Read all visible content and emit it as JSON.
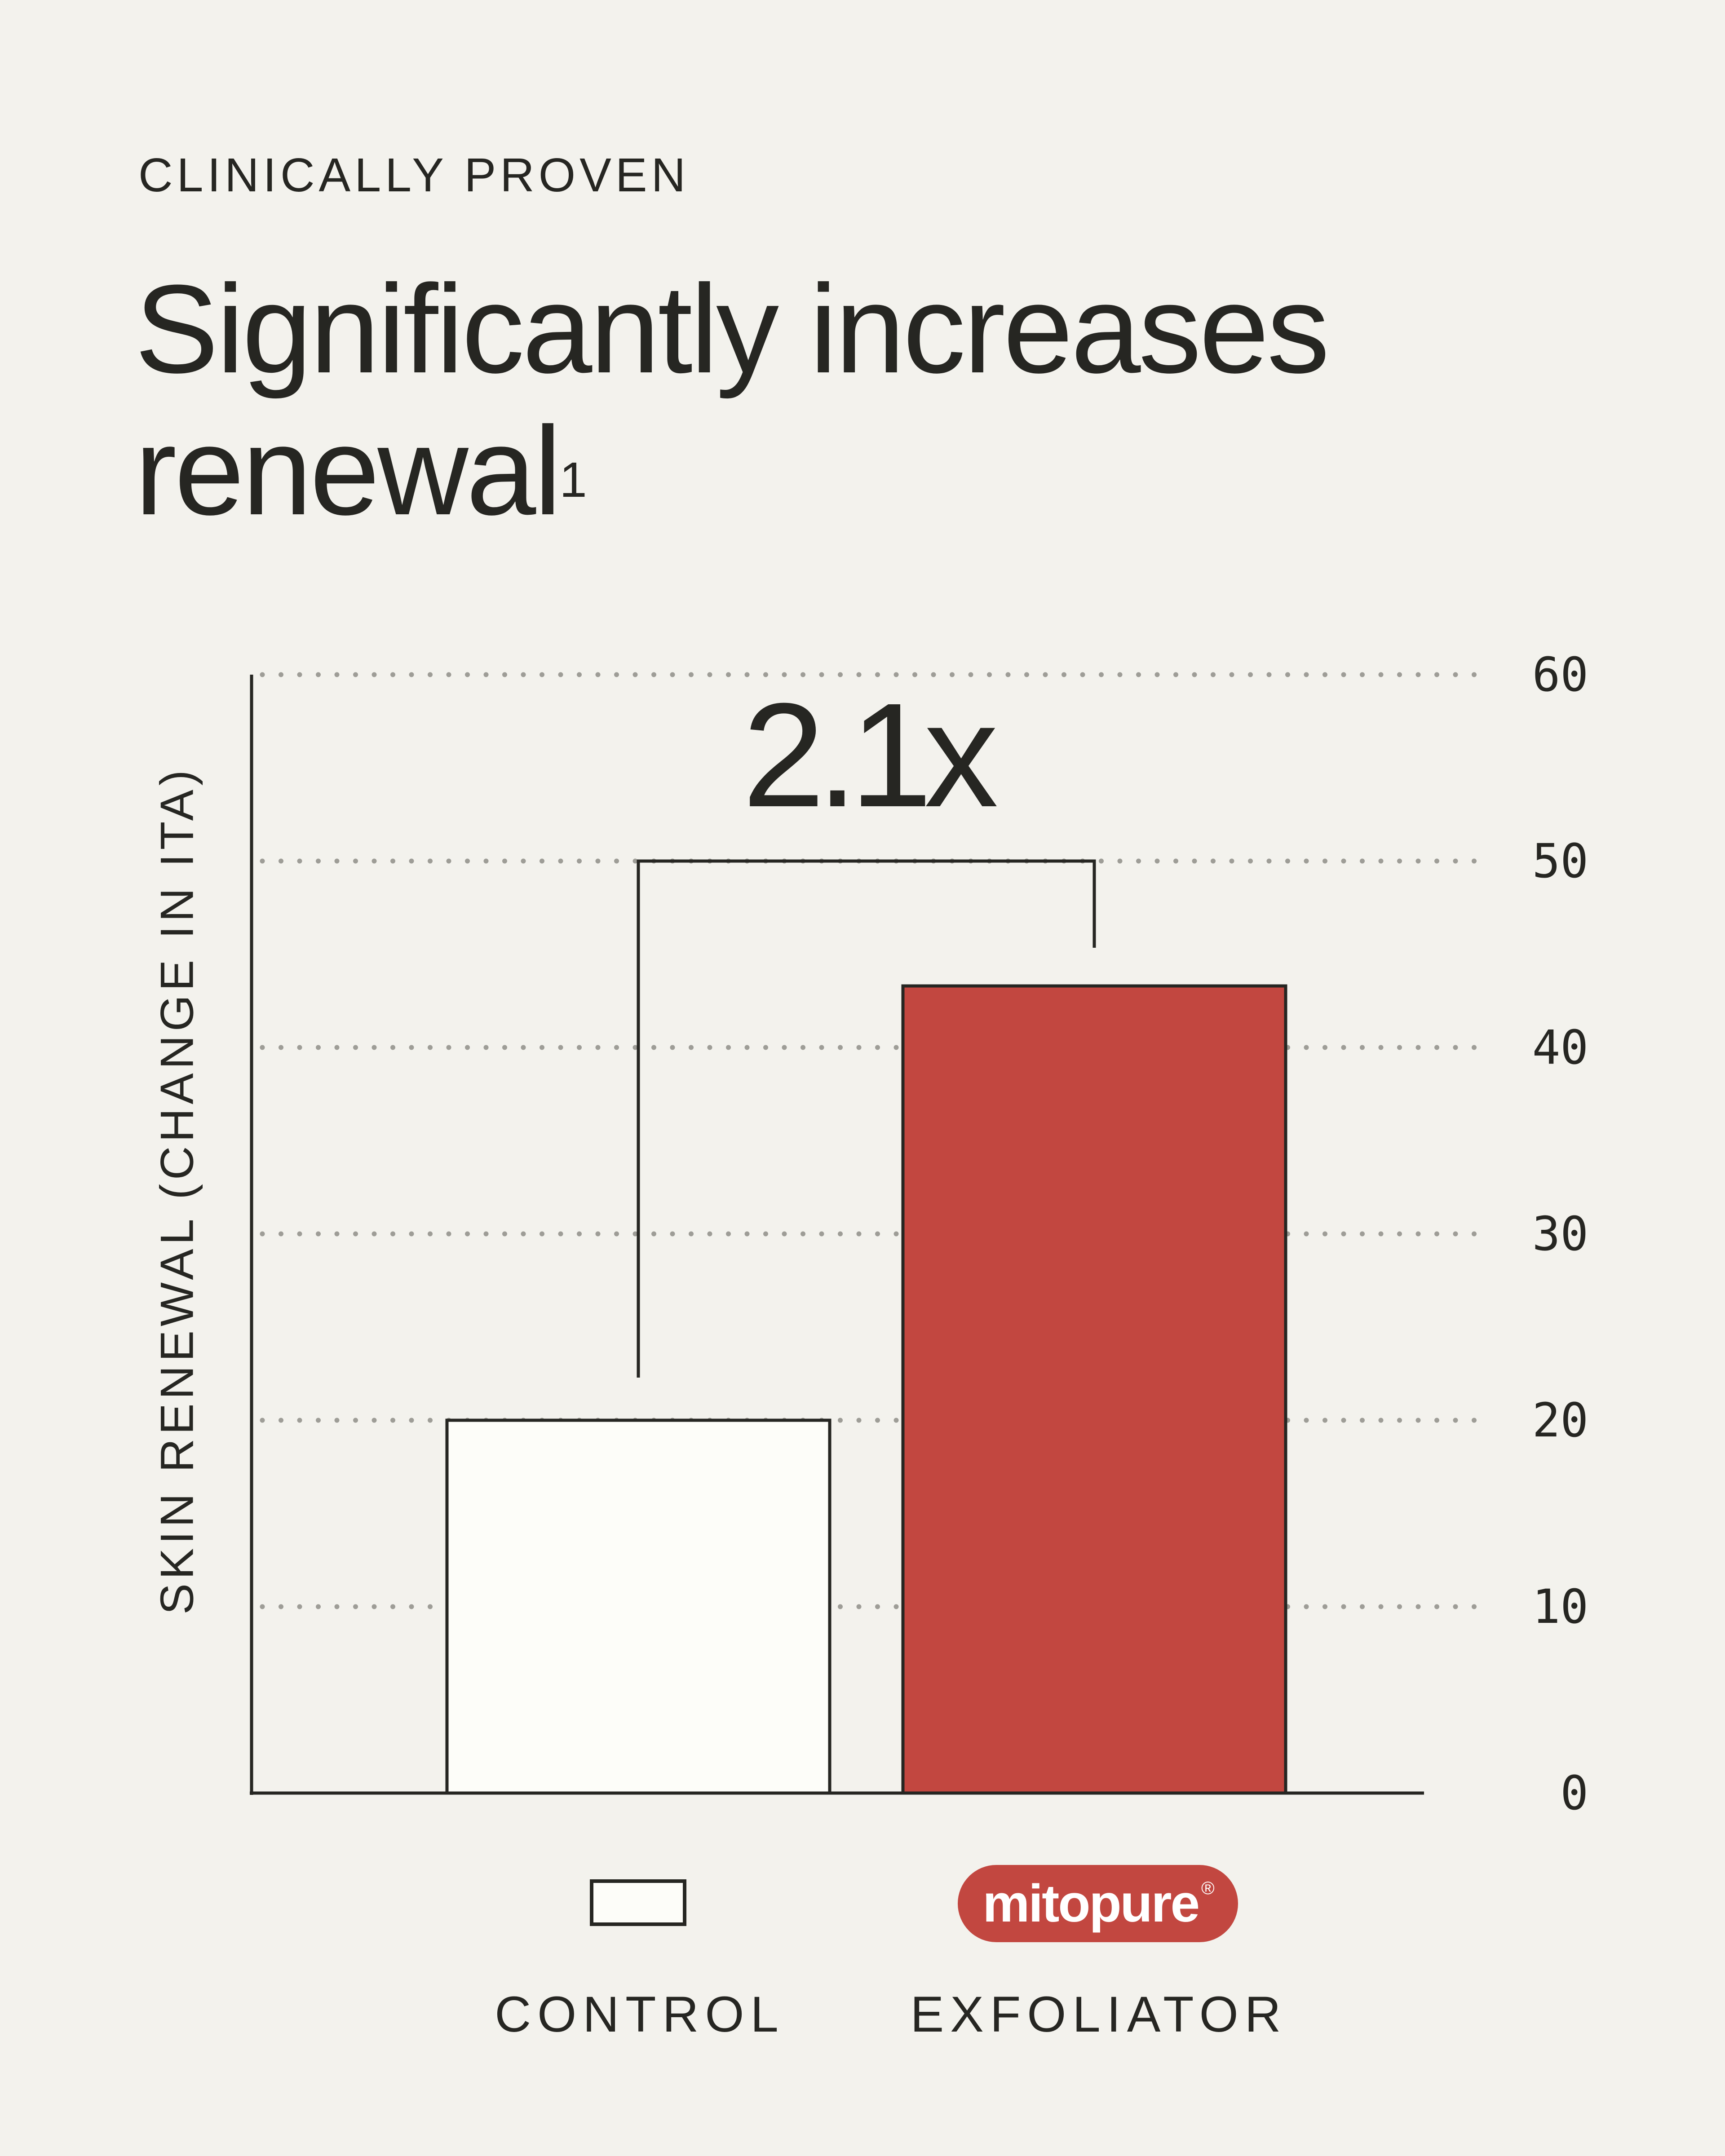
{
  "header": {
    "eyebrow": "CLINICALLY PROVEN",
    "headline": "Significantly increases renewal",
    "footnote_marker": "1"
  },
  "colors": {
    "background": "#f3f2ed",
    "ink": "#262622",
    "control_fill": "#fdfdf9",
    "exfoliator_fill": "#c24740",
    "grid": "#9e9d97"
  },
  "chart_data": {
    "type": "bar",
    "categories": [
      "CONTROL",
      "EXFOLIATOR"
    ],
    "values": [
      20,
      43.3
    ],
    "ylabel": "SKIN RENEWAL (CHANGE IN ITA)",
    "ylim": [
      0,
      60
    ],
    "yticks": [
      0,
      10,
      20,
      30,
      40,
      50,
      60
    ],
    "ytick_side": "right",
    "grid": "dotted horizontal",
    "annotation": "2.1x"
  },
  "legend": {
    "control_label": "CONTROL",
    "exfoliator_label": "EXFOLIATOR",
    "brand_logo": "mitopure",
    "brand_mark": "®"
  }
}
